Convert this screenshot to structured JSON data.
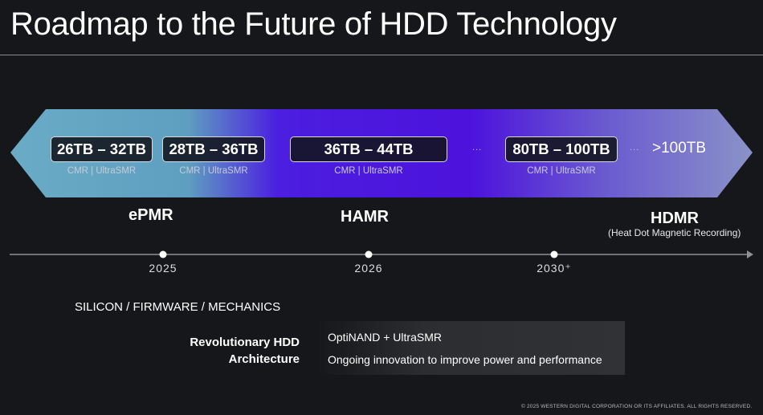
{
  "title": "Roadmap to the Future of HDD Technology",
  "capacities": [
    {
      "label": "26TB – 32TB",
      "sub": "CMR | UltraSMR"
    },
    {
      "label": "28TB – 36TB",
      "sub": "CMR | UltraSMR"
    },
    {
      "label": "36TB – 44TB",
      "sub": "CMR | UltraSMR"
    },
    {
      "label": "80TB – 100TB",
      "sub": "CMR | UltraSMR"
    },
    {
      "label": ">100TB"
    }
  ],
  "ellipsis": "...",
  "technologies": [
    {
      "name": "ePMR"
    },
    {
      "name": "HAMR"
    },
    {
      "name": "HDMR",
      "note": "(Heat Dot Magnetic Recording)"
    }
  ],
  "timeline": [
    "2025",
    "2026",
    "2030⁺"
  ],
  "foundation": "SILICON / FIRMWARE / MECHANICS",
  "architecture": {
    "label_line1": "Revolutionary HDD",
    "label_line2": "Architecture",
    "items": [
      "OptiNAND + UltraSMR",
      "Ongoing innovation to improve power and performance"
    ]
  },
  "copyright": "© 2025 WESTERN DIGITAL CORPORATION OR ITS AFFILIATES. ALL RIGHTS RESERVED.",
  "colors": {
    "background": "#15171a",
    "band_left": "#5fa3bf",
    "band_center": "#4a10e0",
    "band_right": "#7e86c4"
  }
}
